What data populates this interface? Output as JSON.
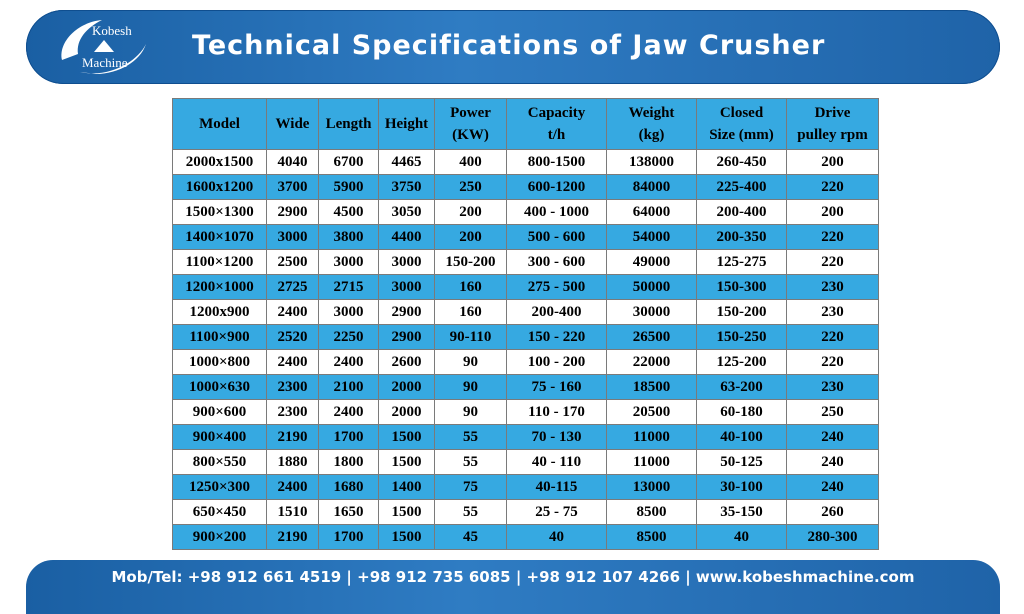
{
  "header": {
    "logo_line1": "Kobesh",
    "logo_line2": "Machine",
    "title": "Technical Specifications of Jaw Crusher"
  },
  "table": {
    "columns": [
      [
        "Model"
      ],
      [
        "Wide"
      ],
      [
        "Length"
      ],
      [
        "Height"
      ],
      [
        "Power",
        "(KW)"
      ],
      [
        "Capacity",
        "t/h"
      ],
      [
        "Weight",
        "(kg)"
      ],
      [
        "Closed",
        "Size (mm)"
      ],
      [
        "Drive",
        "pulley rpm"
      ]
    ],
    "rows": [
      [
        "2000x1500",
        "4040",
        "6700",
        "4465",
        "400",
        "800-1500",
        "138000",
        "260-450",
        "200"
      ],
      [
        "1600x1200",
        "3700",
        "5900",
        "3750",
        "250",
        "600-1200",
        "84000",
        "225-400",
        "220"
      ],
      [
        "1500×1300",
        "2900",
        "4500",
        "3050",
        "200",
        "400 - 1000",
        "64000",
        "200-400",
        "200"
      ],
      [
        "1400×1070",
        "3000",
        "3800",
        "4400",
        "200",
        "500 - 600",
        "54000",
        "200-350",
        "220"
      ],
      [
        "1100×1200",
        "2500",
        "3000",
        "3000",
        "150-200",
        "300 - 600",
        "49000",
        "125-275",
        "220"
      ],
      [
        "1200×1000",
        "2725",
        "2715",
        "3000",
        "160",
        "275 - 500",
        "50000",
        "150-300",
        "230"
      ],
      [
        "1200x900",
        "2400",
        "3000",
        "2900",
        "160",
        "200-400",
        "30000",
        "150-200",
        "230"
      ],
      [
        "1100×900",
        "2520",
        "2250",
        "2900",
        "90-110",
        "150 - 220",
        "26500",
        "150-250",
        "220"
      ],
      [
        "1000×800",
        "2400",
        "2400",
        "2600",
        "90",
        "100 - 200",
        "22000",
        "125-200",
        "220"
      ],
      [
        "1000×630",
        "2300",
        "2100",
        "2000",
        "90",
        "75 - 160",
        "18500",
        "63-200",
        "230"
      ],
      [
        "900×600",
        "2300",
        "2400",
        "2000",
        "90",
        "110 - 170",
        "20500",
        "60-180",
        "250"
      ],
      [
        "900×400",
        "2190",
        "1700",
        "1500",
        "55",
        "70 - 130",
        "11000",
        "40-100",
        "240"
      ],
      [
        "800×550",
        "1880",
        "1800",
        "1500",
        "55",
        "40 - 110",
        "11000",
        "50-125",
        "240"
      ],
      [
        "1250×300",
        "2400",
        "1680",
        "1400",
        "75",
        "40-115",
        "13000",
        "30-100",
        "240"
      ],
      [
        "650×450",
        "1510",
        "1650",
        "1500",
        "55",
        "25 - 75",
        "8500",
        "35-150",
        "260"
      ],
      [
        "900×200",
        "2190",
        "1700",
        "1500",
        "45",
        "40",
        "8500",
        "40",
        "280-300"
      ]
    ]
  },
  "footer": {
    "contact": "Mob/Tel: +98 912 661 4519 | +98 912 735 6085 | +98 912 107 4266 | www.kobeshmachine.com"
  },
  "colors": {
    "banner_blue": "#2f7cc3",
    "table_blue": "#36a9e1",
    "white": "#ffffff"
  },
  "icons": {
    "logo": "kobesh-machine-logo-icon"
  }
}
